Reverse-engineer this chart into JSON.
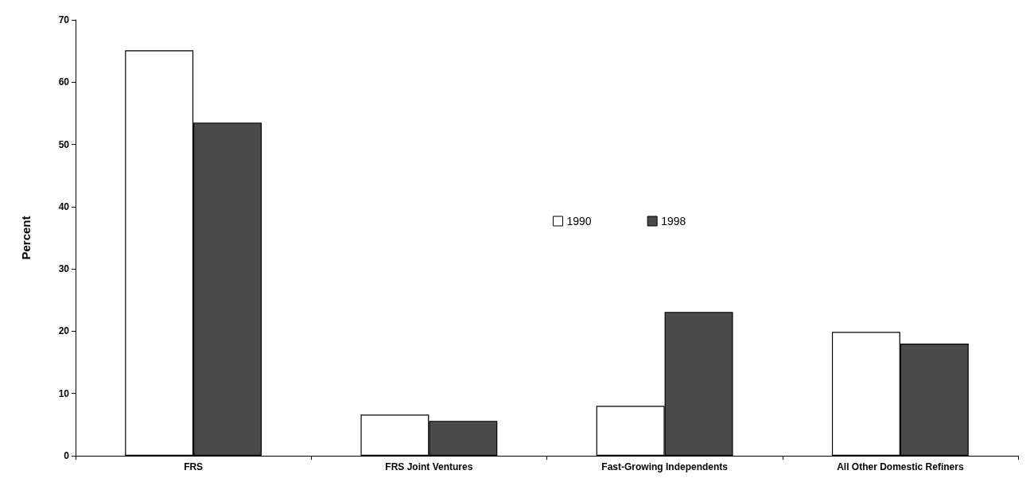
{
  "chart_data": {
    "type": "bar",
    "ylabel": "Percent",
    "categories": [
      "FRS",
      "FRS Joint Ventures",
      "Fast-Growing Independents",
      "All Other Domestic Refiners"
    ],
    "series": [
      {
        "name": "1990",
        "color": "#ffffff",
        "values": [
          65.1,
          6.6,
          8.0,
          19.9
        ]
      },
      {
        "name": "1998",
        "color": "#4a4a4a",
        "values": [
          53.5,
          5.6,
          23.1,
          18.0
        ]
      }
    ],
    "ylim": [
      0,
      70
    ],
    "yticks": [
      0,
      10,
      20,
      30,
      40,
      50,
      60,
      70
    ],
    "grid": false,
    "legend": "center"
  }
}
